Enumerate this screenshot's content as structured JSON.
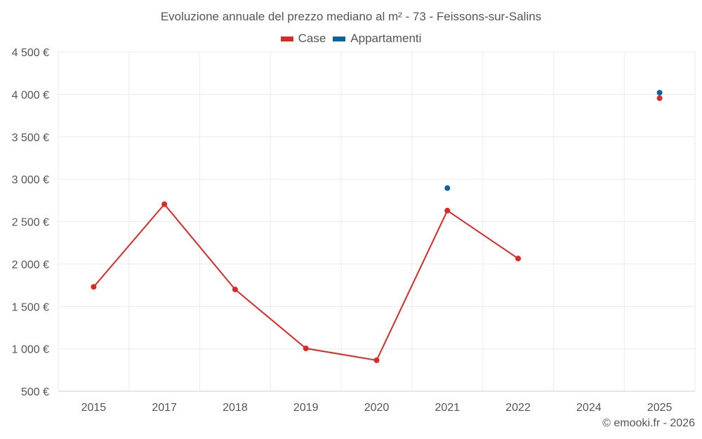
{
  "chart_data": {
    "type": "line",
    "title": "Evoluzione annuale del prezzo mediano al m² - 73 - Feissons-sur-Salins",
    "categories": [
      "2015",
      "2017",
      "2018",
      "2019",
      "2020",
      "2021",
      "2022",
      "2024",
      "2025"
    ],
    "yticks": [
      "500 €",
      "1 000 €",
      "1 500 €",
      "2 000 €",
      "2 500 €",
      "3 000 €",
      "3 500 €",
      "4 000 €",
      "4 500 €"
    ],
    "ylim": [
      500,
      4500
    ],
    "grid": true,
    "legend_position": "top-center",
    "series": [
      {
        "name": "Case",
        "color": "#dc2828",
        "values": [
          1730,
          2705,
          1700,
          1005,
          865,
          2630,
          2065,
          null,
          3955
        ]
      },
      {
        "name": "Appartamenti",
        "color": "#0b64a0",
        "values": [
          null,
          null,
          null,
          null,
          null,
          2895,
          null,
          null,
          4020
        ]
      }
    ]
  },
  "credit": "© emooki.fr - 2026"
}
